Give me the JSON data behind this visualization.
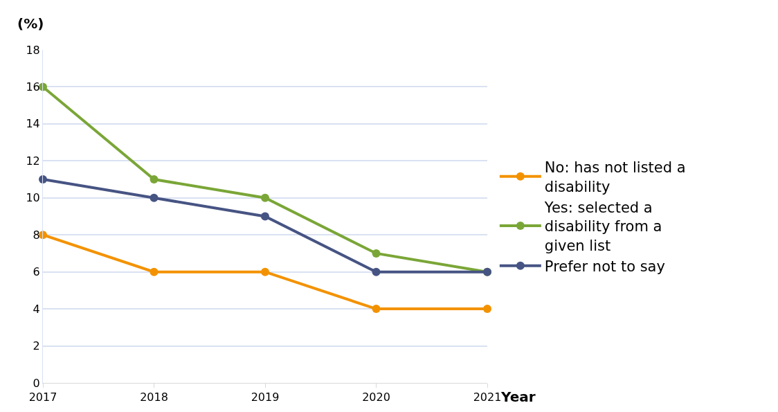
{
  "chart_data": {
    "type": "line",
    "x": [
      2017,
      2018,
      2019,
      2020,
      2021
    ],
    "xlim": [
      2017,
      2021
    ],
    "xticks": [
      2017,
      2018,
      2019,
      2020,
      2021
    ],
    "ylim": [
      0,
      18
    ],
    "yticks": [
      0,
      2,
      4,
      6,
      8,
      10,
      12,
      14,
      16,
      18
    ],
    "xlabel": "Year",
    "ylabel": "(%)",
    "grid": "y",
    "legend": "right",
    "marker": "circle",
    "line_style": "solid",
    "series": [
      {
        "name": "No: has not listed a disability",
        "color": "#f39200",
        "values": [
          8,
          6,
          6,
          4,
          4
        ]
      },
      {
        "name": "Yes: selected a disability from a given list",
        "color": "#7aa637",
        "values": [
          16,
          11,
          10,
          7,
          6
        ]
      },
      {
        "name": "Prefer not to say",
        "color": "#465483",
        "values": [
          11,
          10,
          9,
          6,
          6
        ]
      }
    ]
  }
}
